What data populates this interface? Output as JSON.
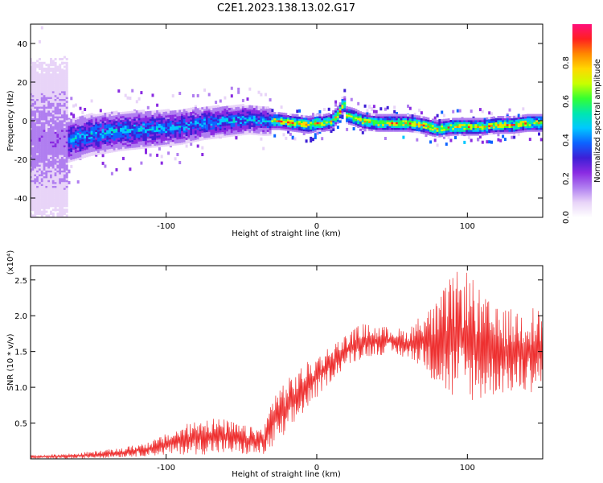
{
  "title": "C2E1.2023.138.13.02.G17",
  "chart_data": [
    {
      "type": "heatmap",
      "xlabel": "Height of straight line (km)",
      "ylabel": "Frequency (Hz)",
      "xlim": [
        -190,
        150
      ],
      "ylim": [
        -50,
        50
      ],
      "xticks": [
        -100,
        0,
        100
      ],
      "yticks": [
        -40,
        -20,
        0,
        20,
        40
      ],
      "colorbar": {
        "label": "Normalized spectral amplitude",
        "range": [
          0,
          1
        ],
        "ticks": [
          0.0,
          0.2,
          0.4,
          0.6,
          0.8
        ],
        "colors": [
          "#ffffff",
          "#e8d4f8",
          "#b07ef0",
          "#8a2be2",
          "#3d1fd6",
          "#0d63ff",
          "#00c8ff",
          "#00e6b0",
          "#33ff33",
          "#c8ff00",
          "#ffd800",
          "#ff8800",
          "#ff2020",
          "#ff0f7b"
        ]
      },
      "ridge": {
        "x": [
          -165,
          -150,
          -130,
          -110,
          -90,
          -75,
          -60,
          -45,
          -35,
          -25,
          -15,
          -5,
          0,
          5,
          10,
          15,
          18,
          20,
          25,
          30,
          40,
          50,
          60,
          70,
          80,
          90,
          100,
          110,
          120,
          130,
          140,
          150
        ],
        "freq": [
          -10,
          -7,
          -5,
          -4,
          -3,
          -1,
          0,
          1,
          0,
          0,
          -1,
          -2,
          -1,
          -1,
          0,
          4,
          10,
          3,
          2,
          0,
          -1,
          -1,
          -1,
          -2,
          -4,
          -3,
          -3,
          -3,
          -2,
          -2,
          -1,
          -1
        ]
      }
    },
    {
      "type": "line",
      "xlabel": "Height of straight line (km)",
      "ylabel": "SNR (10 * v/v)",
      "scale_label": "(x10⁴)",
      "xlim": [
        -190,
        150
      ],
      "ylim": [
        0,
        2.7
      ],
      "xticks": [
        -100,
        0,
        100
      ],
      "yticks": [
        0.5,
        1.0,
        1.5,
        2.0,
        2.5
      ],
      "line_color": "#ee3030",
      "envelope": {
        "x": [
          -190,
          -160,
          -130,
          -110,
          -90,
          -75,
          -60,
          -45,
          -35,
          -28,
          -20,
          -10,
          0,
          10,
          20,
          30,
          40,
          50,
          60,
          70,
          80,
          90,
          100,
          110,
          120,
          130,
          140,
          150
        ],
        "lower": [
          0.0,
          0.0,
          0.02,
          0.04,
          0.06,
          0.06,
          0.06,
          0.05,
          0.05,
          0.15,
          0.3,
          0.6,
          0.85,
          1.1,
          1.3,
          1.4,
          1.45,
          1.45,
          1.4,
          1.3,
          1.0,
          0.8,
          0.8,
          0.8,
          0.9,
          0.9,
          0.9,
          1.0
        ],
        "upper": [
          0.05,
          0.08,
          0.15,
          0.25,
          0.45,
          0.6,
          0.55,
          0.45,
          0.45,
          1.0,
          1.1,
          1.3,
          1.45,
          1.6,
          1.75,
          1.9,
          1.85,
          1.85,
          1.8,
          2.05,
          2.2,
          2.6,
          2.65,
          2.3,
          2.1,
          2.1,
          2.15,
          2.1
        ]
      }
    }
  ]
}
